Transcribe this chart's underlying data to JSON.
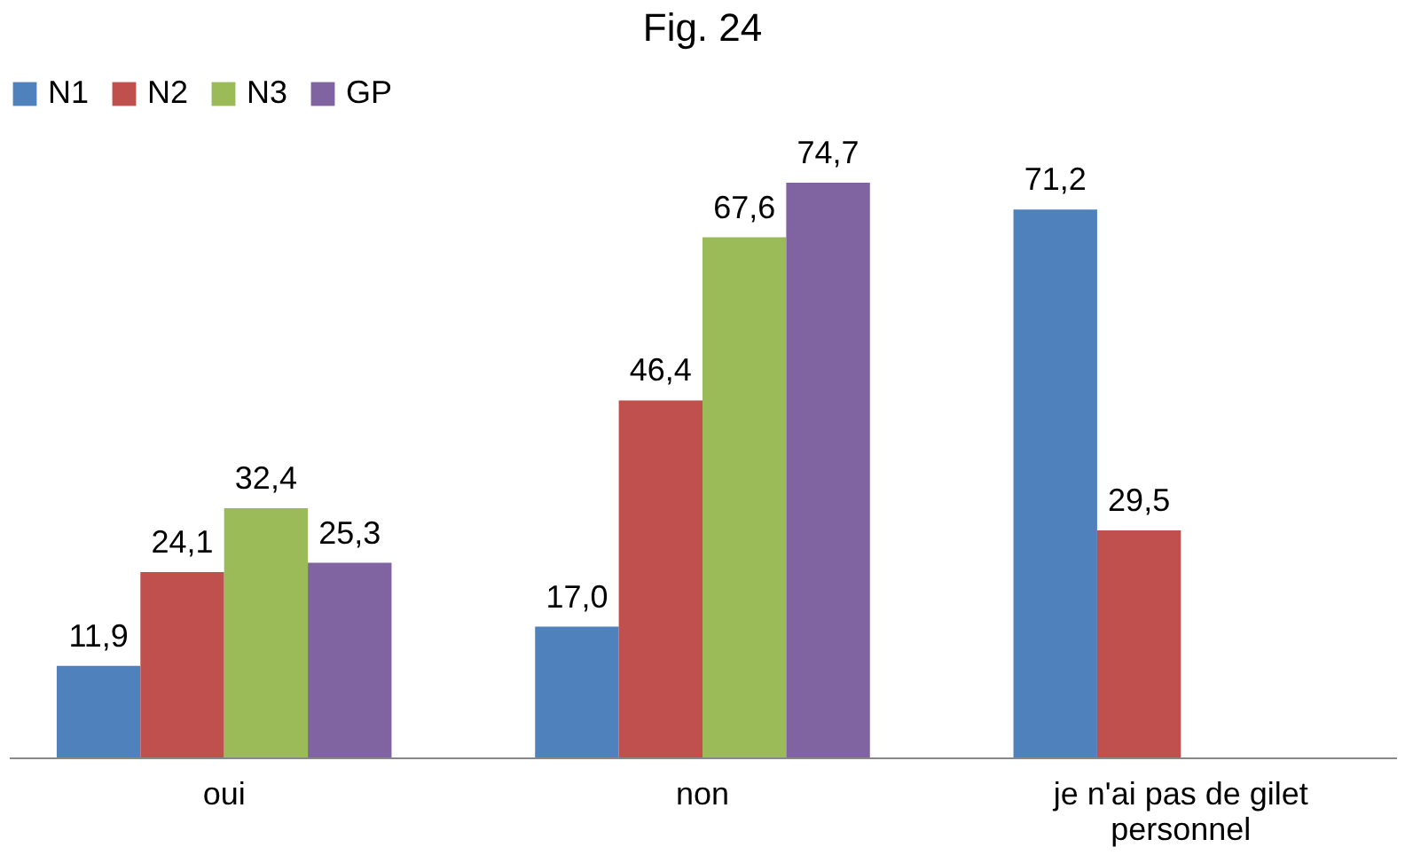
{
  "chart_data": {
    "type": "bar",
    "title": "Fig. 24",
    "categories": [
      "oui",
      "non",
      "je n'ai pas de gilet personnel"
    ],
    "series": [
      {
        "name": "N1",
        "color": "#4f81bd",
        "values": [
          11.9,
          17.0,
          71.2
        ],
        "value_labels": [
          "11,9",
          "17,0",
          "71,2"
        ]
      },
      {
        "name": "N2",
        "color": "#c0504d",
        "values": [
          24.1,
          46.4,
          29.5
        ],
        "value_labels": [
          "24,1",
          "46,4",
          "29,5"
        ]
      },
      {
        "name": "N3",
        "color": "#9bbb59",
        "values": [
          32.4,
          67.6,
          null
        ],
        "value_labels": [
          "32,4",
          "67,6",
          null
        ]
      },
      {
        "name": "GP",
        "color": "#8064a2",
        "values": [
          25.3,
          74.7,
          null
        ],
        "value_labels": [
          "25,3",
          "74,7",
          null
        ]
      }
    ],
    "legend": "top",
    "grid": false,
    "tick_labels": "x"
  }
}
